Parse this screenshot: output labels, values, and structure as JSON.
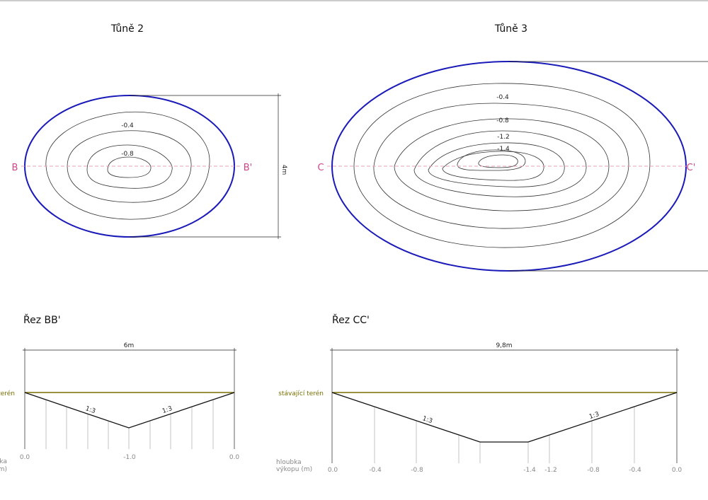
{
  "plans": [
    {
      "title": "Tůně 2",
      "contour_labels": [
        "-0.4",
        "-0.8"
      ],
      "section_marks": [
        "B",
        "B'"
      ],
      "dimension": "4m"
    },
    {
      "title": "Tůně 3",
      "contour_labels": [
        "-0.4",
        "-0.8",
        "-1.2",
        "-1.4"
      ],
      "section_marks": [
        "C",
        "C'"
      ]
    }
  ],
  "sections": [
    {
      "title": "Řez BB'",
      "width": "6m",
      "terrain_label": "stávající terén",
      "slope_labels": [
        "1:3",
        "1:3"
      ],
      "depth_caption": [
        "hloubka",
        "výkopu (m)"
      ],
      "depth_labels": [
        "0.0",
        "-1.0",
        "0.0"
      ]
    },
    {
      "title": "Řez CC'",
      "width": "9,8m",
      "terrain_label": "stávající terén",
      "slope_labels": [
        "1:3",
        "1:3"
      ],
      "depth_caption": [
        "hloubka",
        "výkopu (m)"
      ],
      "depth_labels": [
        "0.0",
        "-0.4",
        "-0.8",
        "-1.4",
        "-1.2",
        "-0.8",
        "-0.4",
        "0.0"
      ]
    }
  ]
}
